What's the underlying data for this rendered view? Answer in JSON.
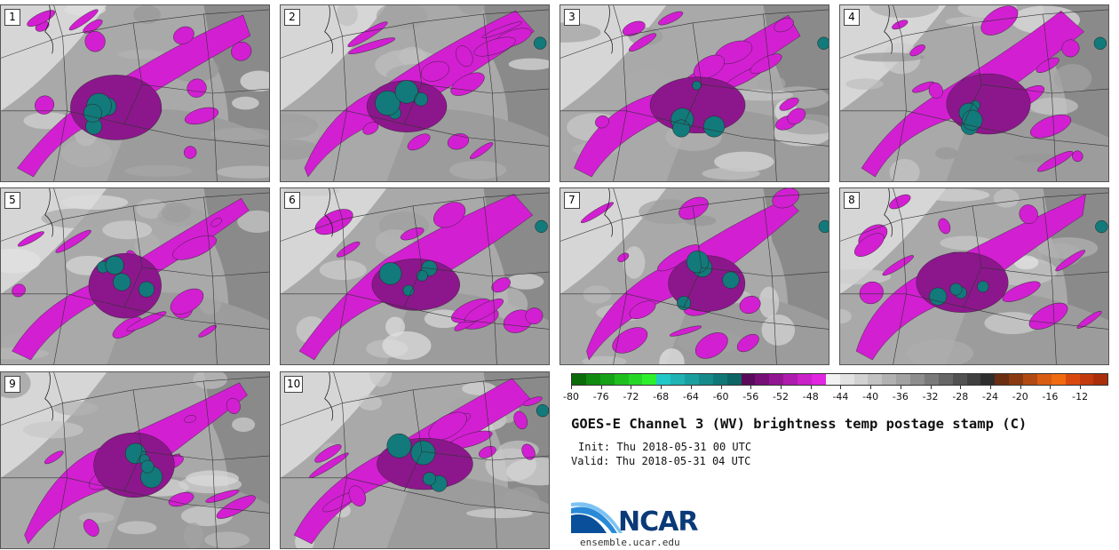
{
  "members": [
    "1",
    "2",
    "3",
    "4",
    "5",
    "6",
    "7",
    "8",
    "9",
    "10"
  ],
  "colorbar": {
    "ticks": [
      "-80",
      "-76",
      "-72",
      "-68",
      "-64",
      "-60",
      "-56",
      "-52",
      "-48",
      "-44",
      "-40",
      "-36",
      "-32",
      "-28",
      "-24",
      "-20",
      "-16",
      "-12"
    ],
    "colors": [
      "#0b6b0b",
      "#118a11",
      "#17a117",
      "#1fbf1f",
      "#27d727",
      "#2df02d",
      "#22c7c7",
      "#1fb3b3",
      "#199f9f",
      "#148a8a",
      "#107777",
      "#0d6464",
      "#5a0a5a",
      "#760f76",
      "#921592",
      "#ae1cae",
      "#c922c9",
      "#e026e0",
      "#f2f2f2",
      "#e2e2e2",
      "#d2d2d2",
      "#c2c2c2",
      "#b2b2b2",
      "#a2a2a2",
      "#8e8e8e",
      "#7a7a7a",
      "#666666",
      "#525252",
      "#404040",
      "#2e2e2e",
      "#6a2e12",
      "#8a3a12",
      "#b04a12",
      "#d85c12",
      "#f06a10",
      "#d8480e",
      "#c23a0c",
      "#aa2e0a"
    ]
  },
  "title": "GOES-E Channel 3 (WV) brightness temp postage stamp (C)",
  "init": "Init: Thu 2018-05-31 00 UTC",
  "valid": "Valid: Thu 2018-05-31 04 UTC",
  "logo": {
    "name": "NCAR",
    "url": "ensemble.ucar.edu"
  }
}
